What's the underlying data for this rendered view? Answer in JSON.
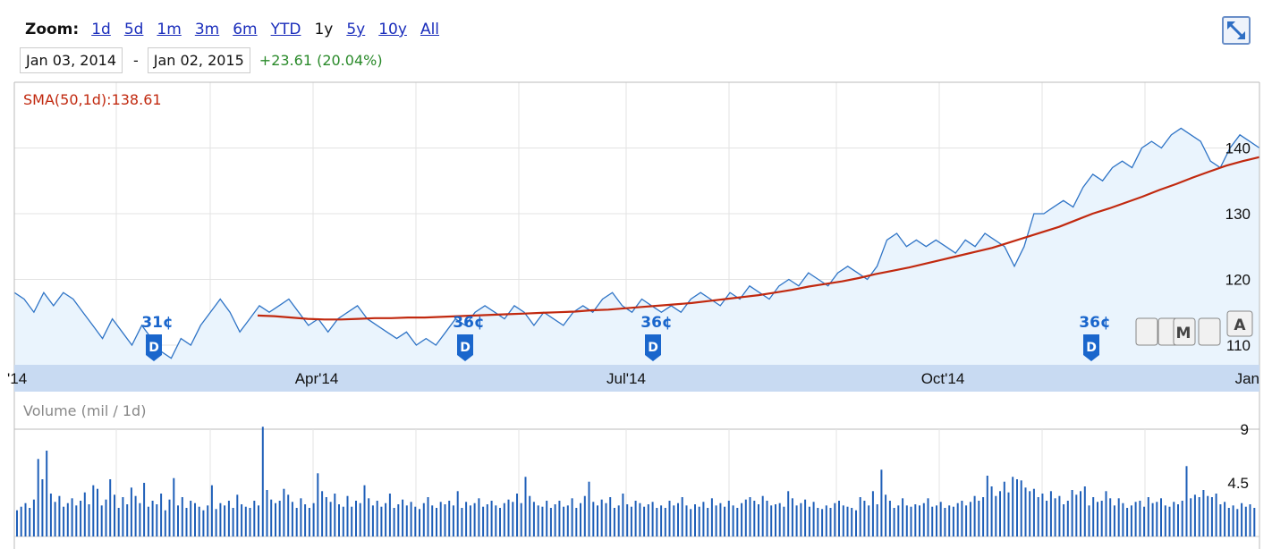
{
  "zoom": {
    "label": "Zoom:",
    "options": [
      "1d",
      "5d",
      "1m",
      "3m",
      "6m",
      "YTD",
      "1y",
      "5y",
      "10y",
      "All"
    ],
    "active": "1y"
  },
  "range": {
    "start": "Jan 03, 2014",
    "separator": "-",
    "end": "Jan 02, 2015",
    "change": "+23.61 (20.04%)"
  },
  "colors": {
    "price_line": "#2f74c6",
    "price_fill": "#eaf4fd",
    "sma_line": "#c1290f",
    "volume_bar": "#1f5fb8",
    "axis_band": "#c8daf2",
    "change_text": "#2a8a2a"
  },
  "icons": {
    "expand": "expand-arrows-icon",
    "dividend": "dividend-marker-icon"
  },
  "chart_data": {
    "type": "line",
    "sma_label": "SMA(50,1d):138.61",
    "x_ticks": [
      "'14",
      "Apr'14",
      "Jul'14",
      "Oct'14",
      "Jan"
    ],
    "y_ticks": [
      110,
      120,
      130,
      140
    ],
    "ylim": [
      107,
      150
    ],
    "dividends": [
      "31¢",
      "36¢",
      "36¢",
      "36¢"
    ],
    "series": [
      {
        "values": [
          118,
          117,
          115,
          118,
          116,
          118,
          117,
          115,
          113,
          111,
          114,
          112,
          110,
          113,
          111,
          109,
          108,
          111,
          110,
          113,
          115,
          117,
          115,
          112,
          114,
          116,
          115,
          116,
          117,
          115,
          113,
          114,
          112,
          114,
          115,
          116,
          114,
          113,
          112,
          111,
          112,
          110,
          111,
          110,
          112,
          114,
          113,
          115,
          116,
          115,
          114,
          116,
          115,
          113,
          115,
          114,
          113,
          115,
          116,
          115,
          117,
          118,
          116,
          115,
          117,
          116,
          115,
          116,
          115,
          117,
          118,
          117,
          116,
          118,
          117,
          119,
          118,
          117,
          119,
          120,
          119,
          121,
          120,
          119,
          121,
          122,
          121,
          120,
          122,
          126,
          127,
          125,
          126,
          125,
          126,
          125,
          124,
          126,
          125,
          127,
          126,
          125,
          122,
          125,
          130,
          130,
          131,
          132,
          131,
          134,
          136,
          135,
          137,
          138,
          137,
          140,
          141,
          140,
          142,
          143,
          142,
          141,
          138,
          137,
          140,
          142,
          141,
          140
        ]
      },
      {
        "values": [
          114.5,
          114.4,
          114.2,
          114.0,
          113.9,
          113.9,
          114.0,
          114.1,
          114.1,
          114.2,
          114.2,
          114.3,
          114.4,
          114.5,
          114.6,
          114.7,
          114.8,
          114.9,
          115.0,
          115.1,
          115.3,
          115.4,
          115.6,
          115.8,
          116.0,
          116.2,
          116.4,
          116.7,
          117.0,
          117.3,
          117.6,
          118.0,
          118.4,
          118.9,
          119.3,
          119.7,
          120.2,
          120.8,
          121.3,
          121.8,
          122.4,
          123.0,
          123.6,
          124.2,
          124.8,
          125.6,
          126.4,
          127.2,
          128.0,
          129.0,
          130.0,
          130.8,
          131.7,
          132.6,
          133.6,
          134.5,
          135.5,
          136.4,
          137.3,
          138.0,
          138.61
        ]
      }
    ],
    "volume": {
      "label": "Volume (mil / 1d)",
      "ticks": [
        4.5,
        9
      ],
      "ylim": [
        0,
        9
      ],
      "values": [
        2.2,
        2.5,
        2.8,
        2.4,
        3.1,
        6.5,
        4.8,
        7.2,
        3.6,
        2.9,
        3.4,
        2.5,
        2.8,
        3.2,
        2.6,
        3.0,
        3.7,
        2.7,
        4.3,
        4.0,
        2.6,
        3.1,
        4.8,
        3.5,
        2.4,
        3.3,
        2.7,
        4.1,
        3.4,
        2.8,
        4.5,
        2.5,
        3.0,
        2.7,
        3.6,
        2.2,
        3.1,
        4.9,
        2.6,
        3.3,
        2.4,
        3.0,
        2.8,
        2.5,
        2.2,
        2.6,
        4.3,
        2.3,
        2.8,
        2.6,
        3.0,
        2.4,
        3.5,
        2.7,
        2.5,
        2.4,
        3.0,
        2.6,
        9.2,
        3.9,
        3.1,
        2.8,
        3.0,
        4.0,
        3.5,
        2.9,
        2.4,
        3.2,
        2.7,
        2.4,
        2.8,
        5.3,
        3.8,
        3.3,
        2.9,
        3.6,
        2.7,
        2.5,
        3.4,
        2.5,
        3.0,
        2.8,
        4.3,
        3.2,
        2.6,
        3.0,
        2.5,
        2.8,
        3.6,
        2.4,
        2.7,
        3.1,
        2.6,
        2.9,
        2.5,
        2.3,
        2.8,
        3.3,
        2.6,
        2.4,
        2.9,
        2.7,
        3.0,
        2.6,
        3.8,
        2.4,
        2.9,
        2.6,
        2.8,
        3.2,
        2.5,
        2.7,
        3.0,
        2.6,
        2.4,
        2.8,
        3.1,
        2.9,
        3.6,
        2.8,
        5.0,
        3.4,
        2.9,
        2.6,
        2.5,
        3.0,
        2.4,
        2.7,
        3.0,
        2.5,
        2.6,
        3.2,
        2.4,
        2.8,
        3.4,
        4.6,
        2.9,
        2.6,
        3.1,
        2.8,
        3.3,
        2.4,
        2.6,
        3.6,
        2.7,
        2.5,
        3.0,
        2.8,
        2.5,
        2.7,
        2.9,
        2.4,
        2.6,
        2.4,
        3.0,
        2.6,
        2.8,
        3.3,
        2.6,
        2.3,
        2.7,
        2.5,
        2.9,
        2.4,
        3.2,
        2.6,
        2.8,
        2.5,
        3.0,
        2.6,
        2.4,
        2.8,
        3.1,
        3.3,
        3.0,
        2.7,
        3.4,
        3.0,
        2.6,
        2.7,
        2.8,
        2.5,
        3.8,
        3.2,
        2.6,
        2.8,
        3.1,
        2.5,
        2.9,
        2.4,
        2.3,
        2.6,
        2.4,
        2.8,
        3.0,
        2.6,
        2.5,
        2.4,
        2.2,
        3.3,
        3.0,
        2.6,
        3.8,
        2.7,
        5.6,
        3.5,
        3.0,
        2.4,
        2.6,
        3.2,
        2.6,
        2.5,
        2.7,
        2.6,
        2.8,
        3.2,
        2.5,
        2.6,
        2.9,
        2.4,
        2.6,
        2.5,
        2.8,
        3.0,
        2.6,
        2.9,
        3.4,
        3.0,
        3.3,
        5.1,
        4.2,
        3.4,
        3.8,
        4.6,
        3.7,
        5.0,
        4.8,
        4.7,
        4.1,
        3.8,
        4.0,
        3.3,
        3.6,
        3.0,
        3.8,
        3.2,
        3.4,
        2.7,
        3.0,
        3.9,
        3.5,
        3.8,
        4.2,
        2.6,
        3.3,
        2.9,
        3.0,
        3.8,
        3.2,
        2.6,
        3.2,
        2.8,
        2.4,
        2.6,
        2.9,
        3.0,
        2.5,
        3.3,
        2.8,
        2.9,
        3.2,
        2.6,
        2.5,
        2.9,
        2.7,
        3.0,
        5.9,
        3.2,
        3.5,
        3.3,
        3.9,
        3.4,
        3.3,
        3.6,
        2.7,
        2.9,
        2.4,
        2.6,
        2.3,
        2.8,
        2.5,
        2.7,
        2.4
      ]
    }
  },
  "misc": {
    "btn_m": "M",
    "btn_a": "A"
  }
}
